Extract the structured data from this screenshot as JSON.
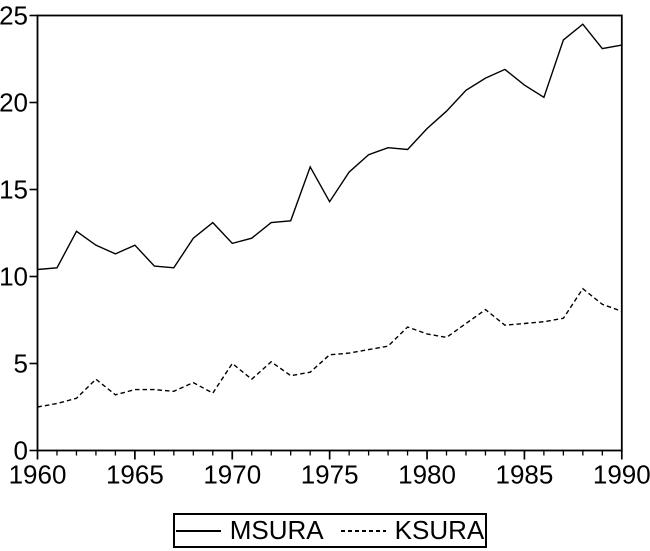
{
  "page": {
    "background": "#ffffff",
    "foreground": "#000000"
  },
  "chart_data": {
    "type": "line",
    "title": "",
    "xlabel": "",
    "ylabel": "",
    "x_years": [
      1960,
      1961,
      1962,
      1963,
      1964,
      1965,
      1966,
      1967,
      1968,
      1969,
      1970,
      1971,
      1972,
      1973,
      1974,
      1975,
      1976,
      1977,
      1978,
      1979,
      1980,
      1981,
      1982,
      1983,
      1984,
      1985,
      1986,
      1987,
      1988,
      1989,
      1990
    ],
    "series": [
      {
        "name": "MSURA",
        "line_style": "solid",
        "color": "#000000",
        "values": [
          10.4,
          10.5,
          12.6,
          11.8,
          11.3,
          11.8,
          10.6,
          10.5,
          12.2,
          13.1,
          11.9,
          12.2,
          13.1,
          13.2,
          16.3,
          14.3,
          16.0,
          17.0,
          17.4,
          17.3,
          18.5,
          19.5,
          20.7,
          21.4,
          21.9,
          21.0,
          20.3,
          23.6,
          24.5,
          23.1,
          23.3
        ]
      },
      {
        "name": "KSURA",
        "line_style": "dashed",
        "color": "#000000",
        "values": [
          2.5,
          2.7,
          3.0,
          4.1,
          3.2,
          3.5,
          3.5,
          3.4,
          3.9,
          3.3,
          5.0,
          4.1,
          5.1,
          4.3,
          4.5,
          5.5,
          5.6,
          5.8,
          6.0,
          7.1,
          6.7,
          6.5,
          7.3,
          8.1,
          7.2,
          7.3,
          7.4,
          7.6,
          9.3,
          8.4,
          8.0
        ]
      }
    ],
    "xlim": [
      1960,
      1990
    ],
    "ylim": [
      0,
      25
    ],
    "y_ticks": [
      0,
      5,
      10,
      15,
      20,
      25
    ],
    "x_major_ticks": [
      1960,
      1965,
      1970,
      1975,
      1980,
      1985,
      1990
    ],
    "x_minor_tick_interval": 1,
    "grid": false,
    "legend_position": "bottom-center",
    "axis_color": "#000000",
    "plot_background": "#ffffff"
  }
}
